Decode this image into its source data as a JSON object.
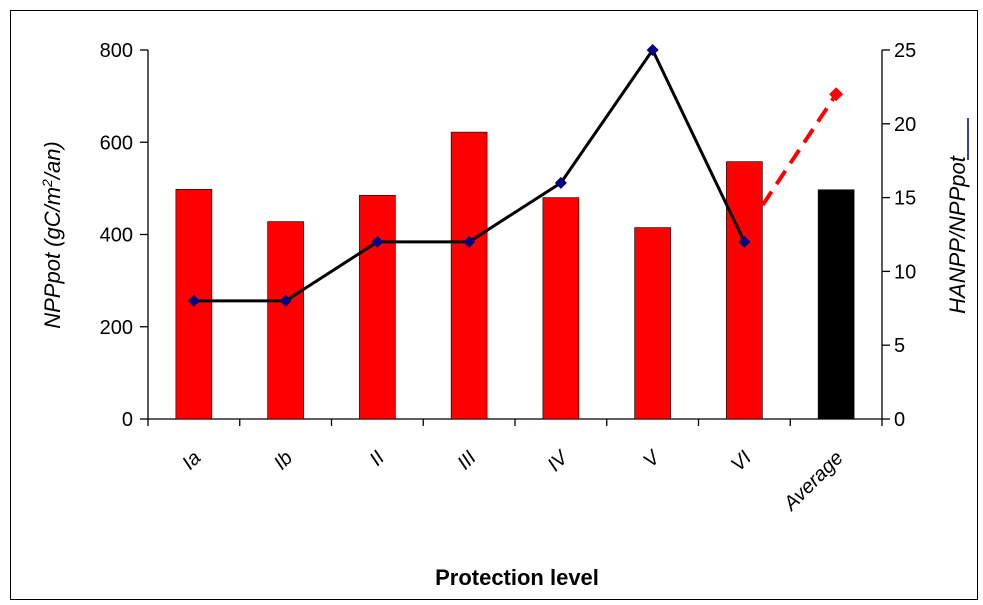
{
  "chart_data": {
    "type": "bar",
    "categories": [
      "Ia",
      "Ib",
      "II",
      "III",
      "IV",
      "V",
      "VI",
      "Average"
    ],
    "xlabel": "Protection level",
    "ylabel_left": "NPPpot (gC/m²/an)",
    "ylabel_left_parts": {
      "pre": "NPPpot (gC/m",
      "sup": "2",
      "post": "/an)"
    },
    "ylabel_right": "HANPP/NPPpot",
    "ylim_left": [
      0,
      800
    ],
    "yticks_left": [
      0,
      200,
      400,
      600,
      800
    ],
    "ylim_right": [
      0,
      25
    ],
    "yticks_right": [
      0,
      5,
      10,
      15,
      20,
      25
    ],
    "grid": false,
    "legend": "none",
    "bars": {
      "axis": "left",
      "values": [
        498,
        428,
        485,
        622,
        480,
        415,
        558,
        497
      ],
      "colors": [
        "#ff0000",
        "#ff0000",
        "#ff0000",
        "#ff0000",
        "#ff0000",
        "#ff0000",
        "#ff0000",
        "#000000"
      ]
    },
    "line": {
      "axis": "right",
      "categories": [
        "Ia",
        "Ib",
        "II",
        "III",
        "IV",
        "V",
        "VI"
      ],
      "values": [
        8,
        8,
        12,
        12,
        16,
        25,
        12
      ],
      "line_color": "#000000",
      "marker_color": "#000080",
      "marker": "diamond"
    },
    "dashed_line": {
      "axis": "right",
      "from": {
        "category_position": 6.2,
        "value": 14.5
      },
      "to": {
        "category": "Average",
        "value": 22
      },
      "color": "#ff0000"
    }
  }
}
